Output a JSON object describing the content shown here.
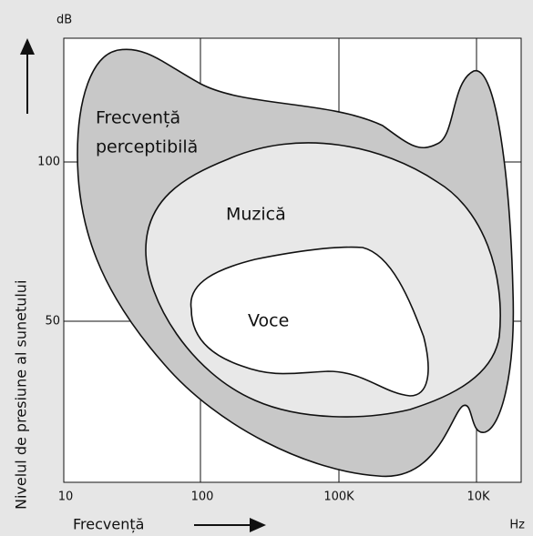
{
  "axes": {
    "y_unit": "dB",
    "x_unit": "Hz",
    "y_label": "Nivelul de presiune al sunetului",
    "x_label": "Frecvență",
    "y_ticks": [
      "100",
      "50"
    ],
    "x_ticks": [
      "10",
      "100",
      "100K",
      "10K"
    ]
  },
  "regions": [
    {
      "label_lines": [
        "Frecvență",
        "perceptibilă"
      ]
    },
    {
      "label_lines": [
        "Muzică"
      ]
    },
    {
      "label_lines": [
        "Voce"
      ]
    }
  ]
}
